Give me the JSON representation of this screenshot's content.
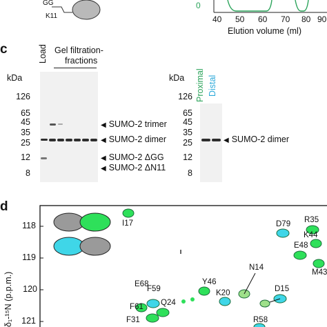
{
  "panel_b_fragment": {
    "schematic_labels": [
      "GG",
      "K11"
    ],
    "elution": {
      "x_ticks": [
        "40",
        "50",
        "60",
        "70",
        "80",
        "90"
      ],
      "y_tick_partial": "0",
      "xlabel": "Elution volume (ml)"
    }
  },
  "panel_c": {
    "letter": "c",
    "left_gel": {
      "kda_label": "kDa",
      "load_label": "Load",
      "fractions_label_line1": "Gel filtration-",
      "fractions_label_line2": "fractions",
      "markers": [
        "126",
        "65",
        "45",
        "35",
        "25",
        "12",
        "8"
      ],
      "band_labels": [
        "SUMO-2 trimer",
        "SUMO-2 dimer",
        "SUMO-2 ΔGG",
        "SUMO-2 ΔN11"
      ]
    },
    "right_gel": {
      "kda_label": "kDa",
      "lane_labels": [
        {
          "text": "Proximal",
          "color": "#2aa35a"
        },
        {
          "text": "Distal",
          "color": "#29a8d9"
        }
      ],
      "markers": [
        "126",
        "65",
        "45",
        "35",
        "25",
        "12",
        "8"
      ],
      "band_labels": [
        "SUMO-2 dimer"
      ]
    }
  },
  "panel_d": {
    "letter": "d",
    "y_axis_label": "δ₁-¹⁵N (p.p.m.)",
    "y_ticks": [
      "118",
      "119",
      "120",
      "121"
    ],
    "peak_labels": [
      "I17",
      "D79",
      "R35",
      "K44",
      "E48",
      "M43",
      "N14",
      "D15",
      "Y46",
      "K20",
      "E68",
      "F59",
      "F61",
      "Q24",
      "F31",
      "R58"
    ],
    "colors": {
      "proximal": "#2ee05a",
      "distal": "#3fd6e8",
      "grey": "#9a9a9a"
    }
  }
}
